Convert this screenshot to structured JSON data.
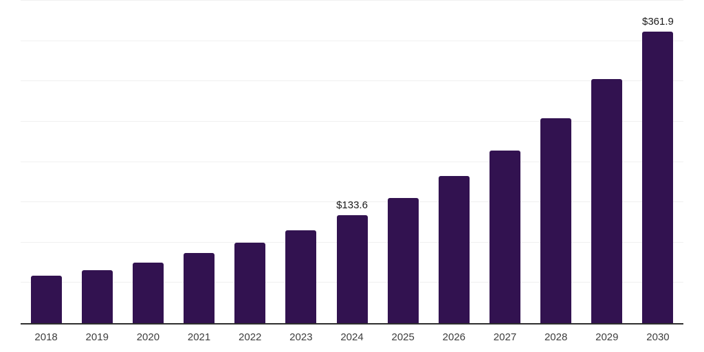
{
  "chart_data": {
    "type": "bar",
    "title": "",
    "xlabel": "",
    "ylabel": "",
    "categories": [
      "2018",
      "2019",
      "2020",
      "2021",
      "2022",
      "2023",
      "2024",
      "2025",
      "2026",
      "2027",
      "2028",
      "2029",
      "2030"
    ],
    "values": [
      58.8,
      65.9,
      75.3,
      86.7,
      100.0,
      115.3,
      133.6,
      155.4,
      182.4,
      214.5,
      254.3,
      303.2,
      361.9
    ],
    "data_labels": {
      "2024": "$133.6",
      "2030": "$361.9"
    },
    "ylim": [
      0,
      400
    ],
    "grid_step": 50,
    "grid": true,
    "legend": false,
    "y_axis_labels_visible": false,
    "colors": {
      "bar": "#321250",
      "axis_line": "#2e2e2e",
      "gridline": "#f0f0f0",
      "tick_label": "#3d3d3d",
      "data_label": "#1a1a1a",
      "background": "#ffffff"
    }
  }
}
